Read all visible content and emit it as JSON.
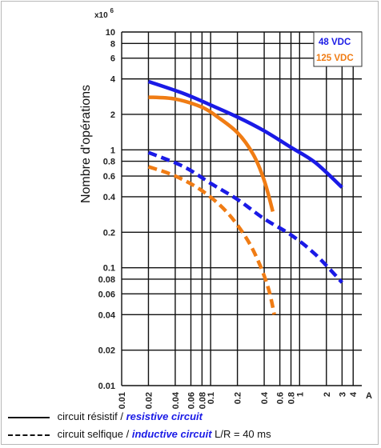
{
  "chart_data": {
    "type": "line",
    "x_scale": "log",
    "y_scale": "log",
    "x_unit": "A",
    "y_exponent": "x10",
    "y_exponent_power": "6",
    "ylabel": "Nombre d'opérations",
    "xlim": [
      0.01,
      5
    ],
    "ylim": [
      0.01,
      10
    ],
    "x_ticks": [
      {
        "v": 0.01,
        "label": "0.01"
      },
      {
        "v": 0.02,
        "label": "0.02"
      },
      {
        "v": 0.04,
        "label": "0.04"
      },
      {
        "v": 0.06,
        "label": "0.06"
      },
      {
        "v": 0.08,
        "label": "0.08"
      },
      {
        "v": 0.1,
        "label": "0.1"
      },
      {
        "v": 0.2,
        "label": "0.2"
      },
      {
        "v": 0.4,
        "label": "0.4"
      },
      {
        "v": 0.6,
        "label": "0.6"
      },
      {
        "v": 0.8,
        "label": "0.8"
      },
      {
        "v": 1,
        "label": "1"
      },
      {
        "v": 2,
        "label": "2"
      },
      {
        "v": 3,
        "label": "3"
      },
      {
        "v": 4,
        "label": "4"
      }
    ],
    "y_ticks": [
      {
        "v": 10,
        "label": "10"
      },
      {
        "v": 8,
        "label": "8"
      },
      {
        "v": 6,
        "label": "6"
      },
      {
        "v": 4,
        "label": "4"
      },
      {
        "v": 2,
        "label": "2"
      },
      {
        "v": 1,
        "label": "1"
      },
      {
        "v": 0.8,
        "label": "0.8"
      },
      {
        "v": 0.6,
        "label": "0.6"
      },
      {
        "v": 0.4,
        "label": "0.4"
      },
      {
        "v": 0.2,
        "label": "0.2"
      },
      {
        "v": 0.1,
        "label": "0.1"
      },
      {
        "v": 0.08,
        "label": "0.08"
      },
      {
        "v": 0.06,
        "label": "0.06"
      },
      {
        "v": 0.04,
        "label": "0.04"
      },
      {
        "v": 0.02,
        "label": "0.02"
      },
      {
        "v": 0.01,
        "label": "0.01"
      }
    ],
    "grid": true,
    "legend": {
      "placement": "top-right",
      "entries": [
        {
          "label": "48 VDC",
          "color": "#1a1ae6"
        },
        {
          "label": "125 VDC",
          "color": "#f07c14"
        }
      ]
    },
    "series": [
      {
        "voltage": "48 VDC",
        "load": "resistive",
        "color": "#1a1ae6",
        "dash": false,
        "points": [
          [
            0.02,
            3.8
          ],
          [
            0.05,
            3.0
          ],
          [
            0.1,
            2.4
          ],
          [
            0.2,
            1.9
          ],
          [
            0.4,
            1.45
          ],
          [
            0.8,
            1.05
          ],
          [
            1.5,
            0.78
          ],
          [
            3,
            0.48
          ]
        ]
      },
      {
        "voltage": "125 VDC",
        "load": "resistive",
        "color": "#f07c14",
        "dash": false,
        "points": [
          [
            0.02,
            2.8
          ],
          [
            0.04,
            2.7
          ],
          [
            0.08,
            2.3
          ],
          [
            0.12,
            1.9
          ],
          [
            0.2,
            1.4
          ],
          [
            0.3,
            0.92
          ],
          [
            0.4,
            0.55
          ],
          [
            0.5,
            0.3
          ]
        ]
      },
      {
        "voltage": "48 VDC",
        "load": "inductive",
        "color": "#1a1ae6",
        "dash": true,
        "points": [
          [
            0.02,
            0.95
          ],
          [
            0.05,
            0.72
          ],
          [
            0.1,
            0.52
          ],
          [
            0.2,
            0.38
          ],
          [
            0.4,
            0.26
          ],
          [
            0.8,
            0.19
          ],
          [
            1.5,
            0.13
          ],
          [
            3,
            0.075
          ]
        ]
      },
      {
        "voltage": "125 VDC",
        "load": "inductive",
        "color": "#f07c14",
        "dash": true,
        "points": [
          [
            0.02,
            0.72
          ],
          [
            0.04,
            0.6
          ],
          [
            0.08,
            0.45
          ],
          [
            0.15,
            0.3
          ],
          [
            0.25,
            0.18
          ],
          [
            0.35,
            0.11
          ],
          [
            0.45,
            0.065
          ],
          [
            0.52,
            0.04
          ]
        ]
      }
    ]
  },
  "captions": {
    "solid": {
      "fr": "circuit résistif",
      "sep": " / ",
      "en": "resistive circuit"
    },
    "dashed": {
      "fr": "circuit selfique",
      "sep": " / ",
      "en": "inductive circuit",
      "suffix": " L/R = 40 ms"
    }
  }
}
